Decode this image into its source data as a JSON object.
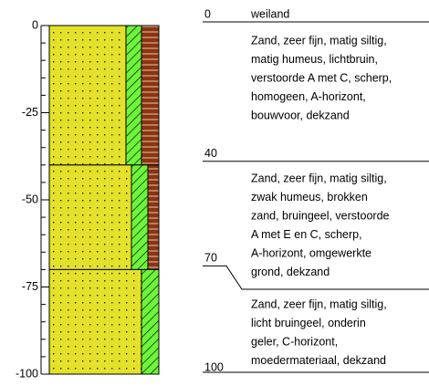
{
  "axis": {
    "ylim": [
      0,
      -100
    ],
    "ticks": [
      0,
      -25,
      -50,
      -75,
      -100
    ]
  },
  "land_use": "weiland",
  "layers": [
    {
      "top": 0,
      "bottom": 40,
      "lines": [
        "Zand, zeer fijn, matig siltig,",
        "matig humeus, lichtbruin,",
        "verstoorde A met C, scherp,",
        "homogeen, A-horizont,",
        "bouwvoor, dekzand"
      ]
    },
    {
      "top": 40,
      "bottom": 70,
      "lines": [
        "Zand, zeer fijn, matig siltig,",
        "zwak humeus, brokken",
        "zand, bruingeel, verstoorde",
        "A  met E en C, scherp,",
        "A-horizont, omgewerkte",
        "grond, dekzand"
      ]
    },
    {
      "top": 70,
      "bottom": 100,
      "lines": [
        "Zand, zeer fijn, matig siltig,",
        "licht bruingeel, onderin",
        "geler, C-horizont,",
        "moedermateriaal, dekzand"
      ]
    }
  ]
}
